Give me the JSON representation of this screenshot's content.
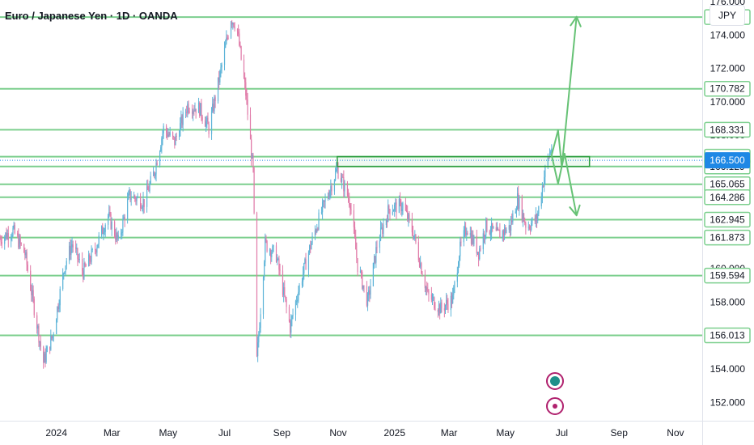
{
  "header": {
    "symbol_title": "Euro / Japanese Yen · 1D · OANDA",
    "currency_button": "JPY"
  },
  "colors": {
    "up": "#5eb4d8",
    "down": "#e07aa8",
    "level": "#7ccf8e",
    "arrow": "#66c275",
    "zone": "#2e9e3f",
    "highlight": "#1e88e5",
    "axis_text": "#131722"
  },
  "chart_data": {
    "type": "candlestick",
    "title": "Euro / Japanese Yen · 1D · OANDA",
    "ylim": [
      150.9,
      176.1
    ],
    "x_range": [
      "2023-11-01",
      "2025-11-30"
    ],
    "x_ticks": [
      {
        "label": "2024",
        "date": "2024-01-01"
      },
      {
        "label": "Mar",
        "date": "2024-03-01"
      },
      {
        "label": "May",
        "date": "2024-05-01"
      },
      {
        "label": "Jul",
        "date": "2024-07-01"
      },
      {
        "label": "Sep",
        "date": "2024-09-01"
      },
      {
        "label": "Nov",
        "date": "2024-11-01"
      },
      {
        "label": "2025",
        "date": "2025-01-01"
      },
      {
        "label": "Mar",
        "date": "2025-03-01"
      },
      {
        "label": "May",
        "date": "2025-05-01"
      },
      {
        "label": "Jul",
        "date": "2025-07-01"
      },
      {
        "label": "Sep",
        "date": "2025-09-01"
      },
      {
        "label": "Nov",
        "date": "2025-11-01"
      }
    ],
    "y_ticks": [
      "176.000",
      "174.000",
      "172.000",
      "170.000",
      "168.000",
      "166.000",
      "164.000",
      "162.000",
      "160.000",
      "158.000",
      "156.000",
      "154.000",
      "152.000"
    ],
    "horizontal_levels": [
      175.079,
      170.782,
      168.331,
      166.719,
      166.129,
      165.065,
      164.286,
      162.945,
      161.873,
      159.594,
      156.013
    ],
    "level_labels": [
      "175.079",
      "170.782",
      "168.331",
      "166.719",
      "166.129",
      "165.065",
      "164.286",
      "162.945",
      "161.873",
      "159.594",
      "156.013"
    ],
    "current_price": 166.5,
    "current_price_label": "166.500",
    "price_path": [
      [
        "2023-11-01",
        161.8
      ],
      [
        "2023-11-15",
        162.3
      ],
      [
        "2023-11-28",
        160.9
      ],
      [
        "2023-12-10",
        157.0
      ],
      [
        "2023-12-18",
        154.4
      ],
      [
        "2023-12-28",
        156.0
      ],
      [
        "2024-01-10",
        160.2
      ],
      [
        "2024-01-18",
        161.5
      ],
      [
        "2024-01-30",
        159.8
      ],
      [
        "2024-02-12",
        161.2
      ],
      [
        "2024-02-26",
        163.2
      ],
      [
        "2024-03-08",
        161.6
      ],
      [
        "2024-03-20",
        164.4
      ],
      [
        "2024-04-05",
        164.0
      ],
      [
        "2024-04-16",
        165.8
      ],
      [
        "2024-04-26",
        168.4
      ],
      [
        "2024-05-08",
        167.6
      ],
      [
        "2024-05-22",
        169.8
      ],
      [
        "2024-06-04",
        169.6
      ],
      [
        "2024-06-14",
        168.4
      ],
      [
        "2024-06-26",
        171.6
      ],
      [
        "2024-07-08",
        175.0
      ],
      [
        "2024-07-14",
        174.6
      ],
      [
        "2024-07-24",
        170.5
      ],
      [
        "2024-08-01",
        165.8
      ],
      [
        "2024-08-05",
        154.5
      ],
      [
        "2024-08-14",
        161.5
      ],
      [
        "2024-08-26",
        160.8
      ],
      [
        "2024-09-10",
        156.5
      ],
      [
        "2024-09-18",
        158.5
      ],
      [
        "2024-09-30",
        161.0
      ],
      [
        "2024-10-10",
        162.8
      ],
      [
        "2024-10-31",
        166.0
      ],
      [
        "2024-11-14",
        164.0
      ],
      [
        "2024-11-22",
        160.2
      ],
      [
        "2024-12-03",
        158.0
      ],
      [
        "2024-12-13",
        161.4
      ],
      [
        "2024-12-26",
        163.6
      ],
      [
        "2025-01-10",
        163.8
      ],
      [
        "2025-01-22",
        162.0
      ],
      [
        "2025-02-06",
        158.4
      ],
      [
        "2025-02-20",
        157.6
      ],
      [
        "2025-03-05",
        158.2
      ],
      [
        "2025-03-12",
        161.0
      ],
      [
        "2025-03-20",
        162.5
      ],
      [
        "2025-04-02",
        161.0
      ],
      [
        "2025-04-10",
        162.6
      ],
      [
        "2025-04-22",
        162.0
      ],
      [
        "2025-05-06",
        162.5
      ],
      [
        "2025-05-14",
        164.2
      ],
      [
        "2025-05-24",
        162.5
      ],
      [
        "2025-06-04",
        163.0
      ],
      [
        "2025-06-14",
        166.2
      ],
      [
        "2025-06-20",
        167.3
      ]
    ],
    "zone": {
      "x_start": "2024-10-31",
      "x_end": "2025-07-31",
      "y_low": 166.129,
      "y_high": 166.719
    },
    "projection_arrows": [
      [
        [
          "2025-06-20",
          166.8
        ],
        [
          "2025-06-27",
          168.3
        ],
        [
          "2025-07-01",
          166.1
        ],
        [
          "2025-07-17",
          175.1
        ]
      ],
      [
        [
          "2025-06-20",
          166.8
        ],
        [
          "2025-06-27",
          165.1
        ],
        [
          "2025-07-04",
          166.9
        ],
        [
          "2025-07-17",
          163.2
        ]
      ]
    ]
  }
}
